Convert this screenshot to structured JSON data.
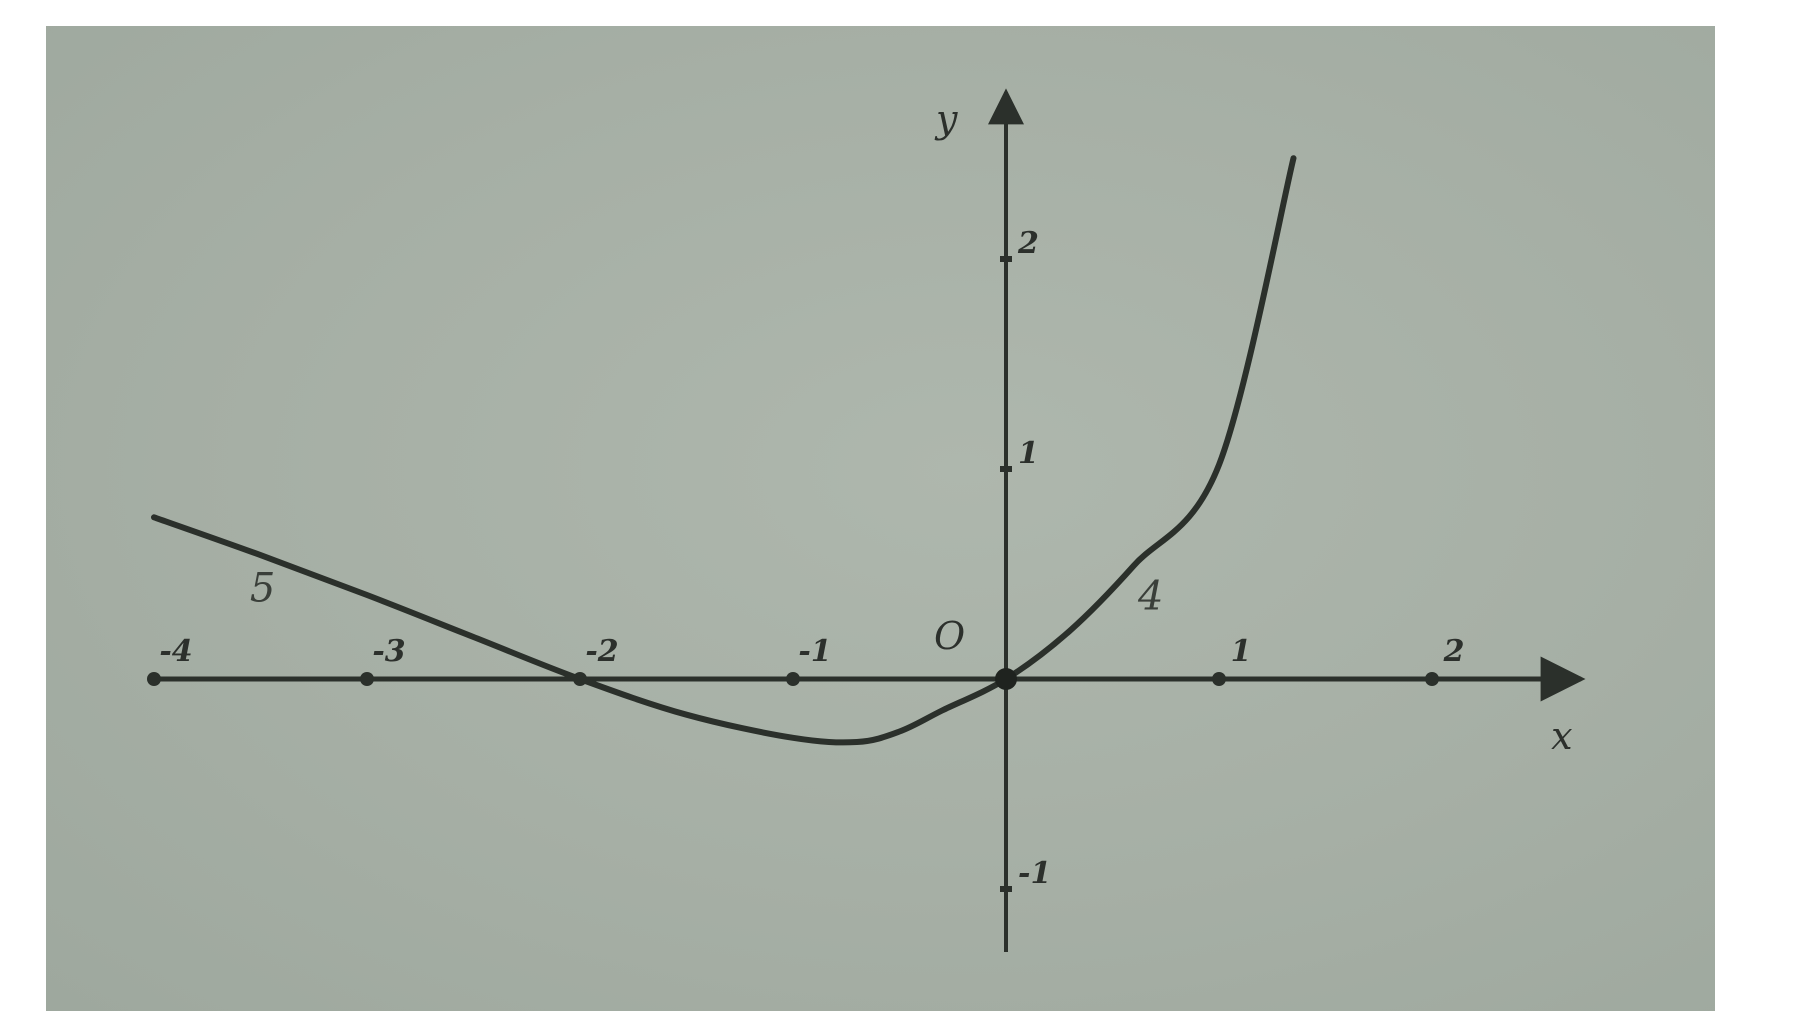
{
  "chart_data": {
    "type": "line",
    "title": "",
    "xlabel": "x",
    "ylabel": "y",
    "origin_label": "O",
    "xlim": [
      -4,
      2.7
    ],
    "ylim": [
      -1.3,
      2.7
    ],
    "x_ticks": [
      -4,
      -3,
      -2,
      -1,
      1,
      2
    ],
    "x_tick_labels": [
      "-4",
      "-3",
      "-2",
      "-1",
      "1",
      "2"
    ],
    "y_ticks": [
      2,
      1,
      -1
    ],
    "y_tick_labels": [
      "2",
      "1",
      "-1"
    ],
    "grid": false,
    "legend": "none",
    "series": [
      {
        "x": [
          -4,
          -3.5,
          -3,
          -2.5,
          -2,
          -1.5,
          -1,
          -0.7,
          -0.5,
          -0.3,
          0,
          0.3,
          0.6,
          1,
          1.35
        ],
        "y": [
          0.77,
          0.59,
          0.4,
          0.2,
          0,
          -0.17,
          -0.28,
          -0.3,
          -0.25,
          -0.15,
          0,
          0.23,
          0.54,
          1.02,
          2.48
        ]
      }
    ],
    "annotations": [
      {
        "text": "5",
        "x": -3.55,
        "y": 0.37
      },
      {
        "text": "4",
        "x": 0.62,
        "y": 0.33
      }
    ],
    "colors": {
      "curve": "#2b302b",
      "axes": "#2b302b",
      "background": "#a9b2a8"
    }
  }
}
